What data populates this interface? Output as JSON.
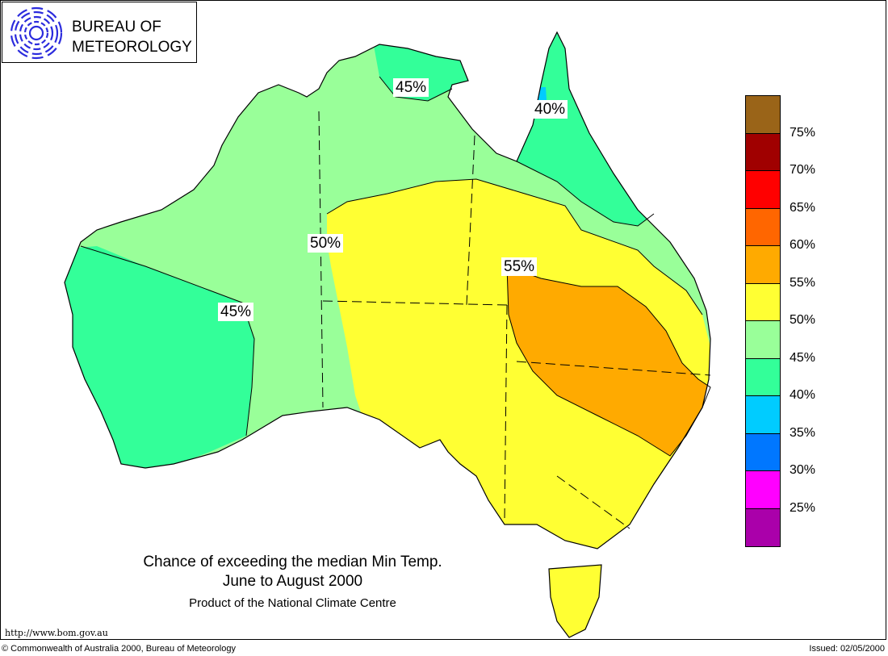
{
  "header": {
    "logo_line1": "BUREAU OF",
    "logo_line2": "METEOROLOGY"
  },
  "map": {
    "region_labels": [
      "45%",
      "40%",
      "50%",
      "45%",
      "55%"
    ]
  },
  "legend": {
    "items": [
      {
        "label": "75%",
        "color": "#9a6418"
      },
      {
        "label": "70%",
        "color": "#a00000"
      },
      {
        "label": "65%",
        "color": "#ff0000"
      },
      {
        "label": "60%",
        "color": "#ff6600"
      },
      {
        "label": "55%",
        "color": "#ffaa00"
      },
      {
        "label": "50%",
        "color": "#ffff33"
      },
      {
        "label": "45%",
        "color": "#99ff99"
      },
      {
        "label": "40%",
        "color": "#33ff99"
      },
      {
        "label": "35%",
        "color": "#00ccff"
      },
      {
        "label": "30%",
        "color": "#0077ff"
      },
      {
        "label": "25%",
        "color": "#ff00ff"
      },
      {
        "label": "",
        "color": "#aa00aa"
      }
    ]
  },
  "title": {
    "line1": "Chance of exceeding the median Min Temp.",
    "line2": "June to August 2000",
    "line3": "Product of the National Climate Centre"
  },
  "footer": {
    "url": "http://www.bom.gov.au",
    "copyright": "© Commonwealth of Australia 2000, Bureau of Meteorology",
    "issued": "Issued: 02/05/2000"
  }
}
